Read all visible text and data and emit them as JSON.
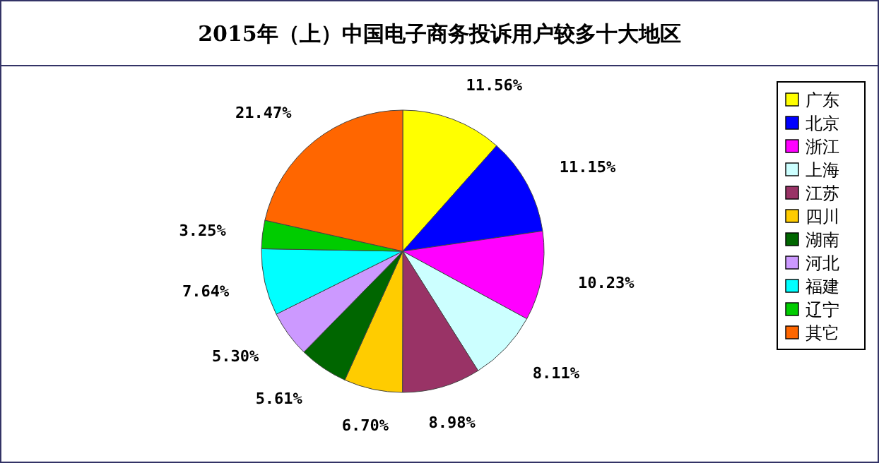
{
  "chart_data": {
    "type": "pie",
    "title": "2015年（上）中国电子商务投诉用户较多十大地区",
    "categories": [
      "广东",
      "北京",
      "浙江",
      "上海",
      "江苏",
      "四川",
      "湖南",
      "河北",
      "福建",
      "辽宁",
      "其它"
    ],
    "values": [
      11.56,
      11.15,
      10.23,
      8.11,
      8.98,
      6.7,
      5.61,
      5.3,
      7.64,
      3.25,
      21.47
    ],
    "value_labels": [
      "11.56%",
      "11.15%",
      "10.23%",
      "8.11%",
      "8.98%",
      "6.70%",
      "5.61%",
      "5.30%",
      "7.64%",
      "3.25%",
      "21.47%"
    ],
    "colors": [
      "#ffff00",
      "#0000ff",
      "#ff00ff",
      "#ccffff",
      "#993366",
      "#ffcc00",
      "#006600",
      "#cc99ff",
      "#00ffff",
      "#00cc00",
      "#ff6600"
    ],
    "legend": "right"
  }
}
